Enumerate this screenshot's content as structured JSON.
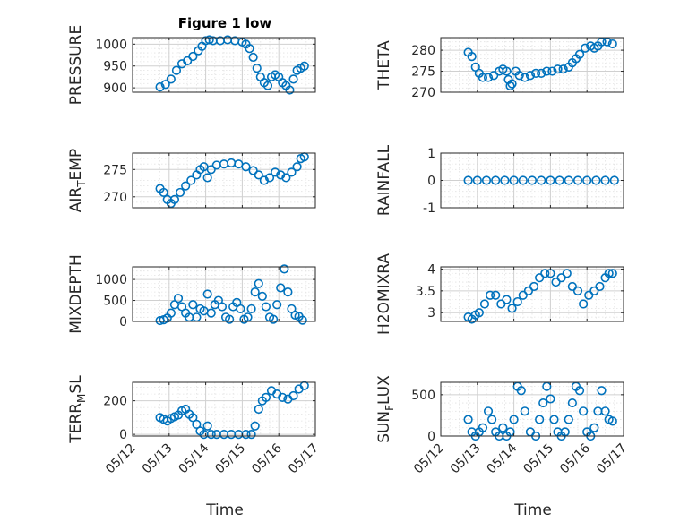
{
  "figure": {
    "title": "Figure 1 low",
    "xlabel": "Time",
    "marker_color": "#0072bd",
    "grid": true,
    "minor_grid": true
  },
  "chart_data": [
    {
      "type": "scatter",
      "ylabel": "PRESSURE",
      "xlim": [
        0,
        5
      ],
      "ylim": [
        890,
        1015
      ],
      "yticks": [
        900,
        950,
        1000
      ],
      "xticks": [
        0,
        1,
        2,
        3,
        4,
        5
      ],
      "xticklabels": [
        "05/12",
        "05/13",
        "05/14",
        "05/15",
        "05/16",
        "05/17"
      ],
      "x": [
        0.75,
        0.9,
        1.05,
        1.2,
        1.35,
        1.5,
        1.65,
        1.8,
        1.9,
        2.0,
        2.1,
        2.2,
        2.4,
        2.6,
        2.8,
        3.0,
        3.1,
        3.2,
        3.3,
        3.4,
        3.5,
        3.6,
        3.7,
        3.8,
        3.9,
        4.0,
        4.1,
        4.2,
        4.3,
        4.4,
        4.5,
        4.6,
        4.7
      ],
      "y": [
        902,
        908,
        920,
        940,
        955,
        962,
        972,
        985,
        995,
        1008,
        1010,
        1008,
        1008,
        1010,
        1008,
        1005,
        1000,
        990,
        970,
        945,
        925,
        912,
        905,
        925,
        930,
        925,
        912,
        905,
        895,
        920,
        940,
        945,
        950
      ]
    },
    {
      "type": "scatter",
      "ylabel": "THETA",
      "xlim": [
        0,
        5
      ],
      "ylim": [
        270,
        283
      ],
      "yticks": [
        270,
        275,
        280
      ],
      "xticks": [
        0,
        1,
        2,
        3,
        4,
        5
      ],
      "xticklabels": [
        "05/12",
        "05/13",
        "05/14",
        "05/15",
        "05/16",
        "05/17"
      ],
      "x": [
        0.75,
        0.85,
        0.95,
        1.05,
        1.15,
        1.3,
        1.45,
        1.6,
        1.7,
        1.8,
        1.85,
        1.9,
        1.95,
        2.05,
        2.15,
        2.3,
        2.45,
        2.6,
        2.75,
        2.9,
        3.05,
        3.2,
        3.35,
        3.5,
        3.6,
        3.7,
        3.8,
        3.95,
        4.1,
        4.2,
        4.3,
        4.4,
        4.55,
        4.7
      ],
      "y": [
        279.5,
        278.5,
        276,
        274.5,
        273.5,
        273.5,
        274,
        275,
        275.5,
        275,
        273,
        271.5,
        272,
        275,
        274,
        273.5,
        274,
        274.5,
        274.5,
        275,
        275,
        275.5,
        275.5,
        276,
        277,
        278,
        279,
        280.5,
        281,
        280.5,
        281,
        282,
        282,
        281.5
      ]
    },
    {
      "type": "scatter",
      "ylabel": "AIR_TEMP",
      "xlim": [
        0,
        5
      ],
      "ylim": [
        268,
        278
      ],
      "yticks": [
        270,
        275
      ],
      "xticks": [
        0,
        1,
        2,
        3,
        4,
        5
      ],
      "xticklabels": [
        "05/12",
        "05/13",
        "05/14",
        "05/15",
        "05/16",
        "05/17"
      ],
      "x": [
        0.75,
        0.85,
        0.95,
        1.05,
        1.15,
        1.3,
        1.45,
        1.6,
        1.75,
        1.85,
        1.95,
        2.05,
        2.15,
        2.3,
        2.5,
        2.7,
        2.9,
        3.1,
        3.3,
        3.45,
        3.6,
        3.75,
        3.9,
        4.05,
        4.2,
        4.35,
        4.5,
        4.6,
        4.7
      ],
      "y": [
        271.5,
        270.8,
        269.5,
        268.8,
        269.5,
        270.8,
        272,
        273,
        274,
        275,
        275.5,
        273.5,
        275,
        275.8,
        276,
        276.2,
        276,
        275.5,
        274.8,
        274,
        273,
        273.5,
        274.5,
        274,
        273.5,
        274.5,
        275.5,
        277,
        277.3
      ]
    },
    {
      "type": "scatter",
      "ylabel": "RAINFALL",
      "xlim": [
        0,
        5
      ],
      "ylim": [
        -1,
        1
      ],
      "yticks": [
        -1,
        0,
        1
      ],
      "xticks": [
        0,
        1,
        2,
        3,
        4,
        5
      ],
      "xticklabels": [
        "05/12",
        "05/13",
        "05/14",
        "05/15",
        "05/16",
        "05/17"
      ],
      "x": [
        0.75,
        1.0,
        1.25,
        1.5,
        1.75,
        2.0,
        2.25,
        2.5,
        2.75,
        3.0,
        3.25,
        3.5,
        3.75,
        4.0,
        4.25,
        4.5,
        4.75
      ],
      "y": [
        0,
        0,
        0,
        0,
        0,
        0,
        0,
        0,
        0,
        0,
        0,
        0,
        0,
        0,
        0,
        0,
        0
      ]
    },
    {
      "type": "scatter",
      "ylabel": "MIXDEPTH",
      "xlim": [
        0,
        5
      ],
      "ylim": [
        0,
        1300
      ],
      "yticks": [
        0,
        500,
        1000
      ],
      "xticks": [
        0,
        1,
        2,
        3,
        4,
        5
      ],
      "xticklabels": [
        "05/12",
        "05/13",
        "05/14",
        "05/15",
        "05/16",
        "05/17"
      ],
      "x": [
        0.75,
        0.85,
        0.95,
        1.05,
        1.15,
        1.25,
        1.35,
        1.45,
        1.55,
        1.65,
        1.75,
        1.85,
        1.95,
        2.05,
        2.15,
        2.25,
        2.35,
        2.45,
        2.55,
        2.65,
        2.75,
        2.85,
        2.95,
        3.05,
        3.15,
        3.25,
        3.35,
        3.45,
        3.55,
        3.65,
        3.75,
        3.85,
        3.95,
        4.05,
        4.15,
        4.25,
        4.35,
        4.45,
        4.55,
        4.65
      ],
      "y": [
        20,
        40,
        80,
        200,
        400,
        550,
        350,
        200,
        100,
        400,
        100,
        300,
        250,
        650,
        200,
        400,
        500,
        350,
        100,
        50,
        350,
        450,
        300,
        50,
        100,
        300,
        700,
        900,
        600,
        350,
        100,
        50,
        400,
        800,
        1250,
        700,
        300,
        150,
        120,
        30
      ]
    },
    {
      "type": "scatter",
      "ylabel": "H2OMIXRA",
      "xlim": [
        0,
        5
      ],
      "ylim": [
        2.8,
        4.05
      ],
      "yticks": [
        3,
        3.5,
        4
      ],
      "xticks": [
        0,
        1,
        2,
        3,
        4,
        5
      ],
      "xticklabels": [
        "05/12",
        "05/13",
        "05/14",
        "05/15",
        "05/16",
        "05/17"
      ],
      "x": [
        0.75,
        0.85,
        0.95,
        1.05,
        1.2,
        1.35,
        1.5,
        1.65,
        1.8,
        1.95,
        2.1,
        2.25,
        2.4,
        2.55,
        2.7,
        2.85,
        3.0,
        3.15,
        3.3,
        3.45,
        3.6,
        3.75,
        3.9,
        4.05,
        4.2,
        4.35,
        4.5,
        4.6,
        4.7
      ],
      "y": [
        2.9,
        2.85,
        2.95,
        3.0,
        3.2,
        3.4,
        3.4,
        3.2,
        3.3,
        3.1,
        3.25,
        3.4,
        3.5,
        3.6,
        3.8,
        3.9,
        3.9,
        3.7,
        3.8,
        3.9,
        3.6,
        3.5,
        3.2,
        3.4,
        3.5,
        3.6,
        3.8,
        3.9,
        3.9
      ]
    },
    {
      "type": "scatter",
      "ylabel": "TERR_MSL",
      "xlim": [
        0,
        5
      ],
      "ylim": [
        -10,
        310
      ],
      "yticks": [
        0,
        200
      ],
      "xticks": [
        0,
        1,
        2,
        3,
        4,
        5
      ],
      "xticklabels": [
        "05/12",
        "05/13",
        "05/14",
        "05/15",
        "05/16",
        "05/17"
      ],
      "x": [
        0.75,
        0.85,
        0.95,
        1.05,
        1.15,
        1.25,
        1.35,
        1.45,
        1.55,
        1.65,
        1.75,
        1.85,
        1.95,
        2.05,
        2.15,
        2.3,
        2.5,
        2.7,
        2.9,
        3.1,
        3.25,
        3.35,
        3.45,
        3.55,
        3.65,
        3.8,
        3.95,
        4.1,
        4.25,
        4.4,
        4.55,
        4.7
      ],
      "y": [
        100,
        90,
        80,
        95,
        105,
        115,
        140,
        150,
        120,
        100,
        60,
        20,
        0,
        50,
        0,
        0,
        0,
        0,
        0,
        0,
        0,
        50,
        150,
        200,
        220,
        260,
        240,
        220,
        210,
        230,
        270,
        290
      ]
    },
    {
      "type": "scatter",
      "ylabel": "SUN_FLUX",
      "xlim": [
        0,
        5
      ],
      "ylim": [
        0,
        650
      ],
      "yticks": [
        0,
        500
      ],
      "xticks": [
        0,
        1,
        2,
        3,
        4,
        5
      ],
      "xticklabels": [
        "05/12",
        "05/13",
        "05/14",
        "05/15",
        "05/16",
        "05/17"
      ],
      "x": [
        0.75,
        0.85,
        0.95,
        1.05,
        1.15,
        1.3,
        1.4,
        1.5,
        1.6,
        1.7,
        1.8,
        1.9,
        2.0,
        2.1,
        2.2,
        2.3,
        2.45,
        2.6,
        2.7,
        2.8,
        2.9,
        3.0,
        3.1,
        3.2,
        3.3,
        3.4,
        3.5,
        3.6,
        3.7,
        3.8,
        3.9,
        4.0,
        4.1,
        4.2,
        4.3,
        4.4,
        4.5,
        4.6,
        4.7
      ],
      "y": [
        200,
        50,
        0,
        50,
        100,
        300,
        200,
        50,
        0,
        100,
        0,
        50,
        200,
        600,
        550,
        300,
        50,
        0,
        200,
        400,
        600,
        450,
        200,
        50,
        0,
        50,
        200,
        400,
        600,
        550,
        300,
        50,
        0,
        100,
        300,
        550,
        300,
        200,
        180
      ]
    }
  ]
}
